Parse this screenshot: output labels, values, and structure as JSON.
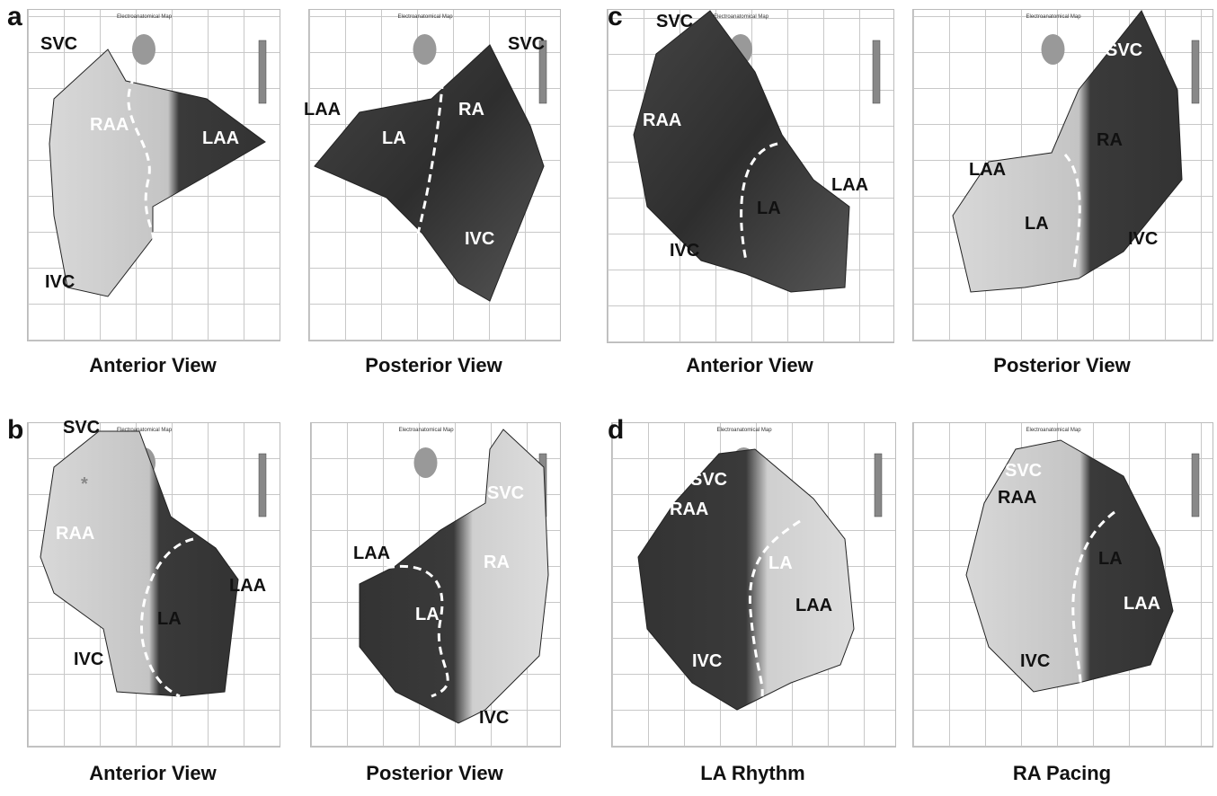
{
  "panels": [
    {
      "letter": "a",
      "views": [
        {
          "map_title": "Electroanatomical Map",
          "caption": "Anterior View",
          "labels": [
            "SVC",
            "RAA",
            "LAA",
            "IVC"
          ]
        },
        {
          "map_title": "Electroanatomical Map",
          "caption": "Posterior View",
          "labels": [
            "SVC",
            "LAA",
            "LA",
            "RA",
            "IVC"
          ]
        }
      ]
    },
    {
      "letter": "b",
      "views": [
        {
          "map_title": "Electroanatomical Map",
          "caption": "Anterior View",
          "labels": [
            "SVC",
            "RAA",
            "LAA",
            "LA",
            "IVC",
            "*"
          ]
        },
        {
          "map_title": "Electroanatomical Map",
          "caption": "Posterior View",
          "labels": [
            "SVC",
            "LAA",
            "RA",
            "LA",
            "IVC"
          ]
        }
      ]
    },
    {
      "letter": "c",
      "views": [
        {
          "map_title": "Electroanatomical Map",
          "caption": "Anterior View",
          "labels": [
            "SVC",
            "RAA",
            "LAA",
            "LA",
            "IVC"
          ]
        },
        {
          "map_title": "Electroanatomical Map",
          "caption": "Posterior View",
          "labels": [
            "SVC",
            "LAA",
            "RA",
            "LA",
            "IVC"
          ]
        }
      ]
    },
    {
      "letter": "d",
      "views": [
        {
          "map_title": "Electroanatomical Map",
          "caption": "LA Rhythm",
          "labels": [
            "SVC",
            "RAA",
            "LA",
            "LAA",
            "IVC"
          ]
        },
        {
          "map_title": "Electroanatomical Map",
          "caption": "RA Pacing",
          "labels": [
            "SVC",
            "RAA",
            "LA",
            "LAA",
            "IVC"
          ]
        }
      ]
    }
  ]
}
